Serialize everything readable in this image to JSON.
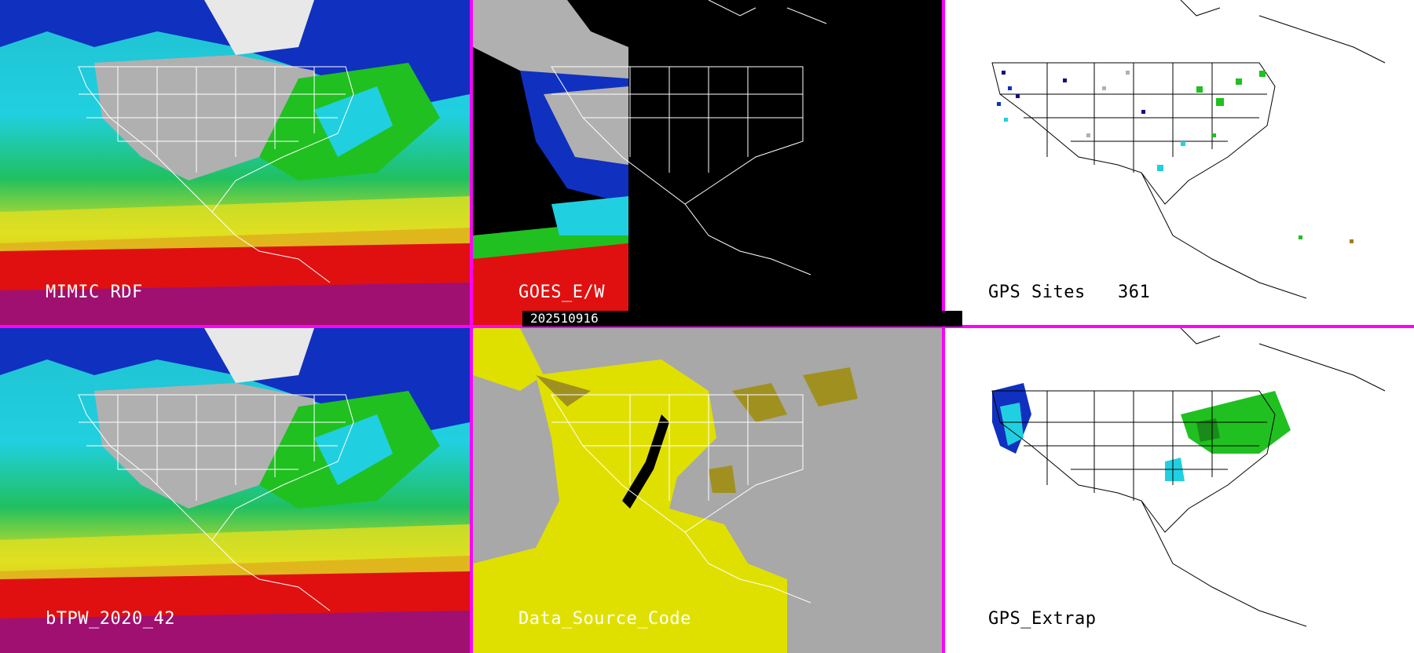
{
  "panels": {
    "mimic": {
      "label": "MIMIC RDF"
    },
    "goes": {
      "label": "GOES_E/W"
    },
    "gps_sites": {
      "label": "GPS Sites",
      "count": "361"
    },
    "btpw": {
      "label": "bTPW_2020_42"
    },
    "data_source": {
      "label": "Data_Source_Code"
    },
    "gps_extrap": {
      "label": "GPS_Extrap"
    }
  },
  "timestamp": "202510916",
  "colors": {
    "separator": "#ff00ff",
    "tpw_palette": [
      "#ffffff",
      "#b0b0b0",
      "#101080",
      "#1030c0",
      "#2080e0",
      "#20d0e0",
      "#20e080",
      "#20c020",
      "#e0e020",
      "#f08020",
      "#e01010",
      "#a01070",
      "#7020a0"
    ],
    "source_yellow": "#e0e000",
    "source_olive": "#a09020",
    "source_gray": "#a8a8a8"
  },
  "icons": {
    "state_boundaries": "map-outline"
  }
}
